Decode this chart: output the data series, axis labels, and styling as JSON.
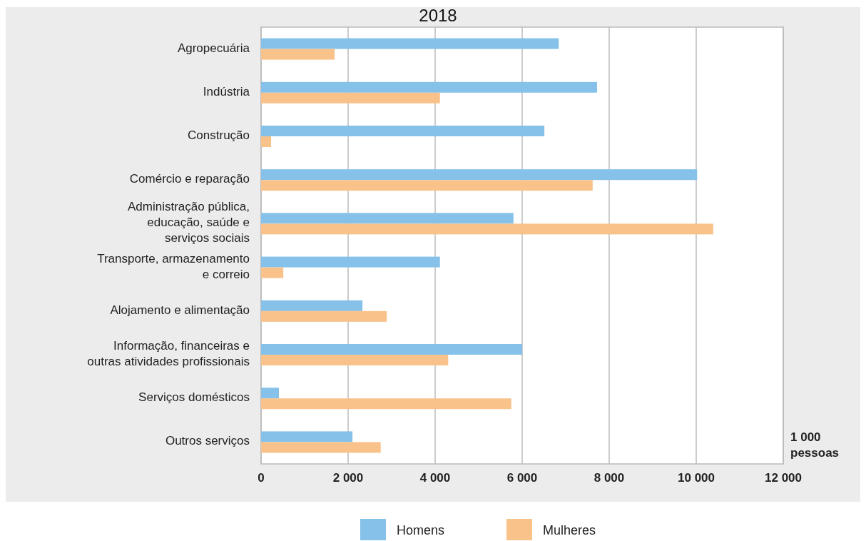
{
  "chart_data": {
    "type": "bar",
    "orientation": "horizontal",
    "title": "2018",
    "xlabel": "1 000\npessoas",
    "categories": [
      "Agropecuária",
      "Indústria",
      "Construção",
      "Comércio e reparação",
      "Administração pública,\neducação, saúde e\nserviços sociais",
      "Transporte, armazenamento\ne correio",
      "Alojamento e alimentação",
      "Informação, financeiras e\noutras atividades profissionais",
      "Serviços domésticos",
      "Outros serviços"
    ],
    "series": [
      {
        "name": "Homens",
        "color": "#85c1e9",
        "values": [
          6840,
          7720,
          6510,
          10020,
          5800,
          4110,
          2330,
          6000,
          410,
          2100
        ]
      },
      {
        "name": "Mulheres",
        "color": "#f9c28b",
        "values": [
          1690,
          4110,
          230,
          7620,
          10390,
          510,
          2890,
          4300,
          5750,
          2750
        ]
      }
    ],
    "xlim": [
      0,
      12000
    ],
    "xticks": [
      {
        "value": 0,
        "label": "0"
      },
      {
        "value": 2000,
        "label": "2 000"
      },
      {
        "value": 4000,
        "label": "4 000"
      },
      {
        "value": 6000,
        "label": "6 000"
      },
      {
        "value": 8000,
        "label": "8 000"
      },
      {
        "value": 10000,
        "label": "10 000"
      },
      {
        "value": 12000,
        "label": "12 000"
      }
    ],
    "grid": "x",
    "legend": "bottom"
  }
}
